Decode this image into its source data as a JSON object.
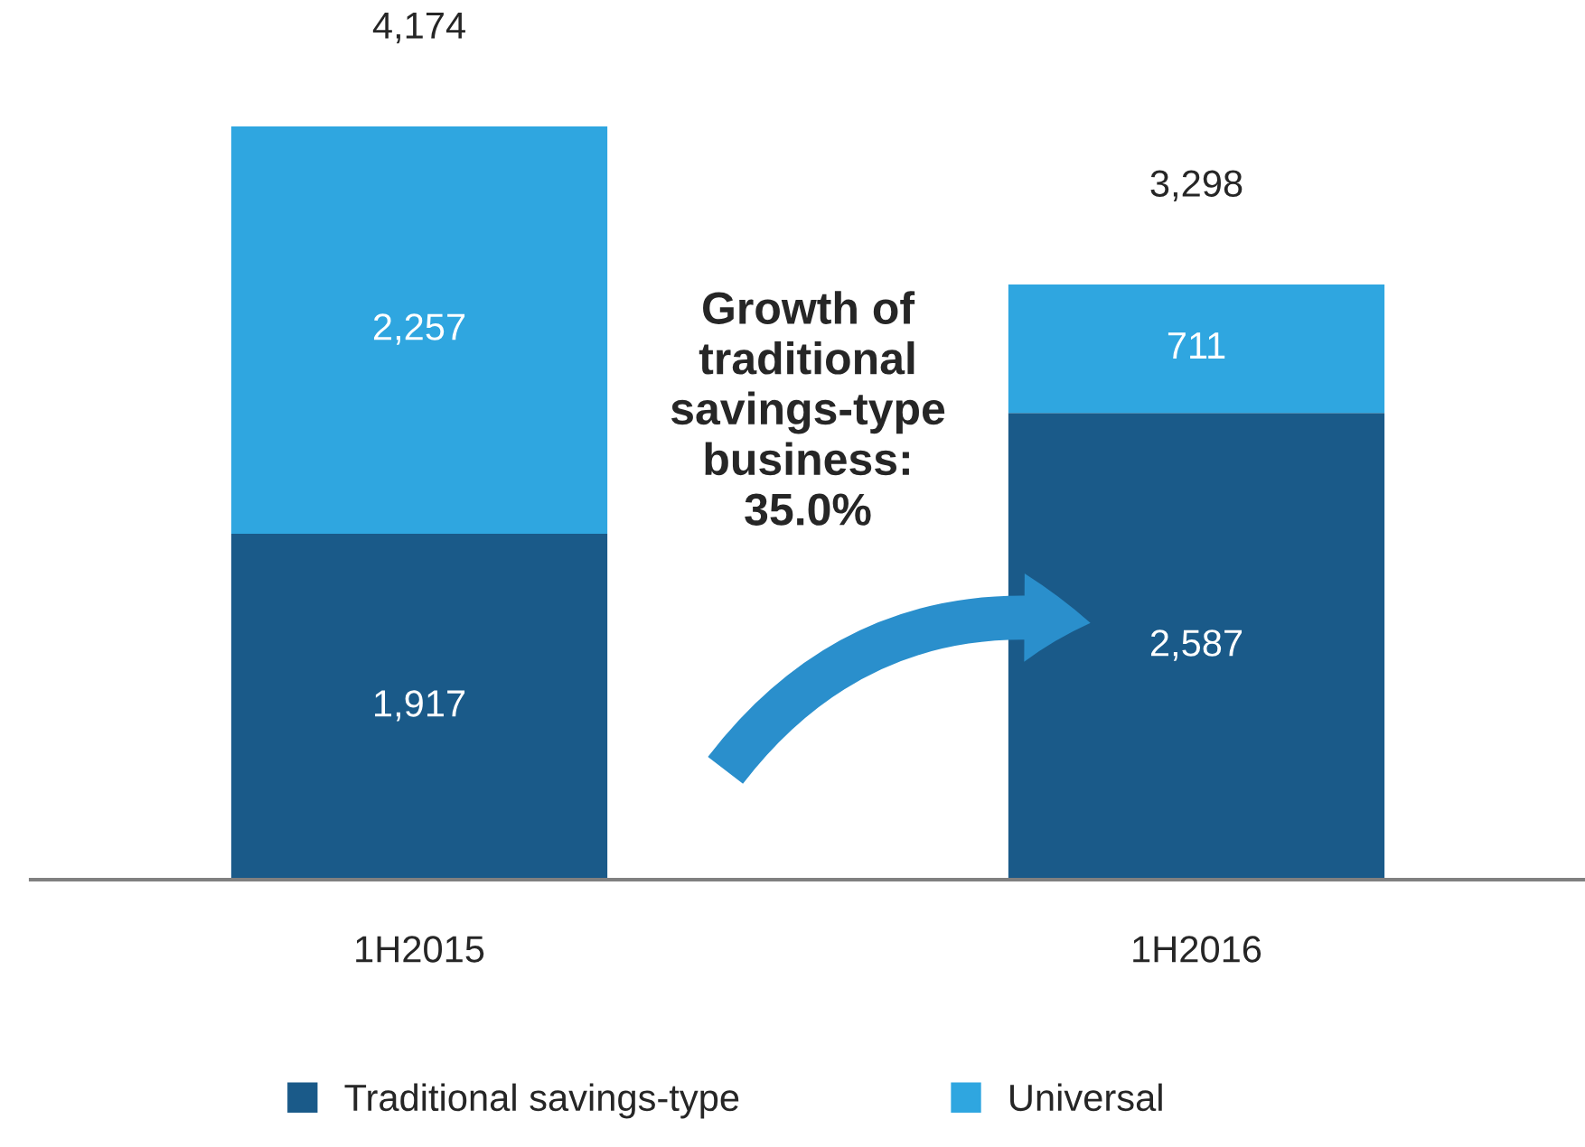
{
  "chart_data": {
    "type": "bar",
    "stacked": true,
    "categories": [
      "1H2015",
      "1H2016"
    ],
    "series": [
      {
        "name": "Traditional savings-type",
        "color": "#1a5a89",
        "values": [
          1917,
          2587
        ],
        "value_labels": [
          "1,917",
          "2,587"
        ]
      },
      {
        "name": "Universal",
        "color": "#2fa6e0",
        "values": [
          2257,
          711
        ],
        "value_labels": [
          "2,257",
          "711"
        ]
      }
    ],
    "totals": [
      "4,174",
      "3,298"
    ],
    "annotations": [
      "Growth of\ntraditional\nsavings-type\nbusiness:\n35.0%"
    ],
    "legend": "bottom",
    "grid": false
  }
}
